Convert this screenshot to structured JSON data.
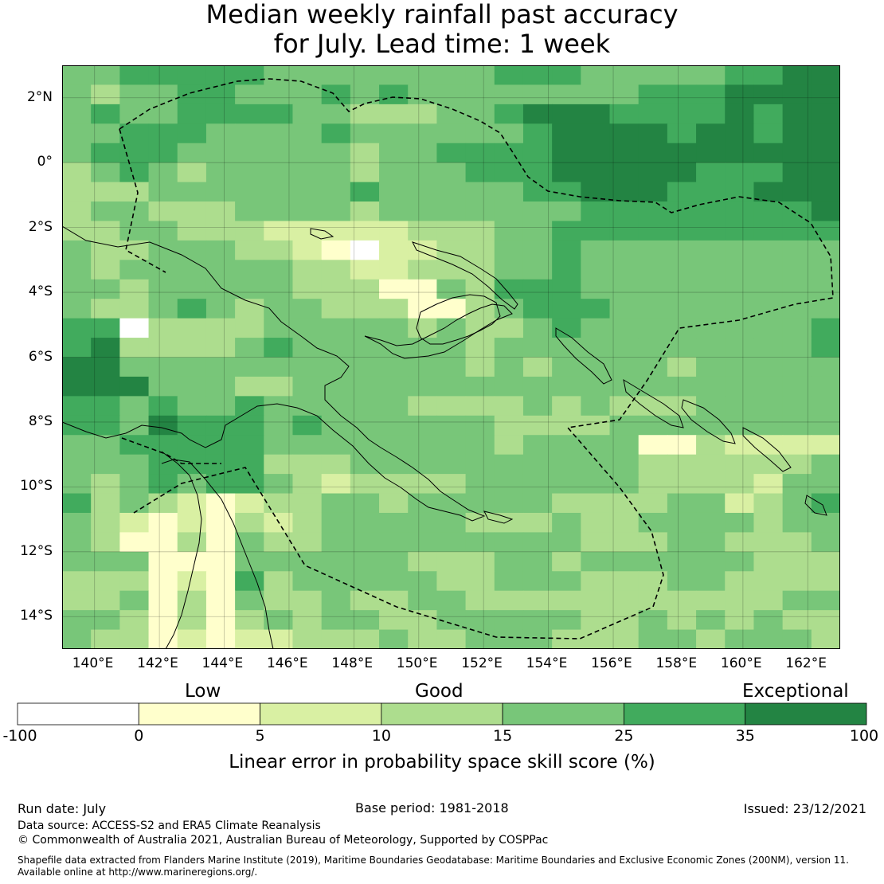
{
  "title": {
    "line1": "Median weekly rainfall past accuracy",
    "line2": "for July. Lead time: 1 week"
  },
  "map": {
    "lon_range": [
      139,
      163
    ],
    "lat_range": [
      -15,
      3
    ],
    "cell_size_deg": 0.8,
    "x_ticks": [
      {
        "value": 140,
        "label": "140°E"
      },
      {
        "value": 142,
        "label": "142°E"
      },
      {
        "value": 144,
        "label": "144°E"
      },
      {
        "value": 146,
        "label": "146°E"
      },
      {
        "value": 148,
        "label": "148°E"
      },
      {
        "value": 150,
        "label": "150°E"
      },
      {
        "value": 152,
        "label": "152°E"
      },
      {
        "value": 154,
        "label": "154°E"
      },
      {
        "value": 156,
        "label": "156°E"
      },
      {
        "value": 158,
        "label": "158°E"
      },
      {
        "value": 160,
        "label": "160°E"
      },
      {
        "value": 162,
        "label": "162°E"
      }
    ],
    "y_ticks": [
      {
        "value": 2,
        "label": "2°N"
      },
      {
        "value": 0,
        "label": "0°"
      },
      {
        "value": -2,
        "label": "2°S"
      },
      {
        "value": -4,
        "label": "4°S"
      },
      {
        "value": -6,
        "label": "6°S"
      },
      {
        "value": -8,
        "label": "8°S"
      },
      {
        "value": -10,
        "label": "10°S"
      },
      {
        "value": -12,
        "label": "12°S"
      },
      {
        "value": -14,
        "label": "14°S"
      }
    ],
    "grid": "on",
    "skill_grid_rows_north_to_south": [
      "445555544444444555444445566",
      "434455444545444444445556666",
      "454455554433344566655556566",
      "445554444544444456666566566",
      "455544444434455556666666666",
      "345434444434445556666655566",
      "333444444454444455666555666",
      "344333444434444444555555556",
      "334433322222333445555555555",
      "433444332102233445444444444",
      "434444443322333445444444444",
      "443444443331143555444444444",
      "433454344333113455544444444",
      "550333344444343345444444445",
      "563333454444443444444444445",
      "664444444444443434444344444",
      "666444334444444444444444444",
      "554544544444333343433344444",
      "554655545444444333344444444",
      "445555544444444344441132222",
      "444555533344444444443333334",
      "434545543233334444443333244",
      "534321233443444443333442345",
      "432121323444443334334444344",
      "431131433444444444333443334",
      "444111444444333443444444333",
      "333121534444433444333443333",
      "334131433433443333333333344",
      "443131343443344444334343433",
      "433121223334334443334434443"
    ]
  },
  "colorbar": {
    "category_labels": [
      "Low",
      "Good",
      "Exceptional"
    ],
    "ticks": [
      "-100",
      "0",
      "5",
      "10",
      "15",
      "25",
      "35",
      "100"
    ],
    "colors": [
      "#ffffff",
      "#ffffcc",
      "#d9f0a3",
      "#addd8e",
      "#78c679",
      "#41ab5d",
      "#238443"
    ],
    "title": "Linear error in probability space skill score (%)"
  },
  "footer": {
    "run_date": "Run date: July",
    "base_period": "Base period: 1981-2018",
    "issued": "Issued: 23/12/2021",
    "data_source": "Data source: ACCESS-S2 and ERA5 Climate Reanalysis",
    "copyright": "© Commonwealth of Australia 2021, Australian Bureau of Meteorology, Supported by COSPPac",
    "shapefile_line1": "Shapefile data extracted from Flanders Marine Institute (2019), Maritime Boundaries Geodatabase: Maritime Boundaries and Exclusive Economic Zones (200NM), version 11.",
    "shapefile_line2": "Available online at http://www.marineregions.org/."
  }
}
